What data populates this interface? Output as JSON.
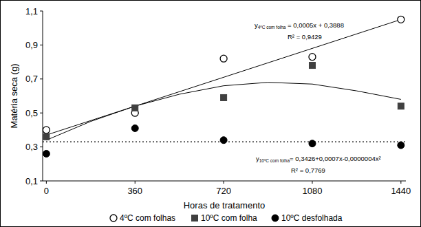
{
  "chart_data": {
    "type": "scatter",
    "x_label": "Horas de tratamento",
    "y_label": "Matéria seca (g)",
    "xlim": [
      -15,
      1460
    ],
    "ylim": [
      0.1,
      1.1
    ],
    "xticks": [
      0,
      360,
      720,
      1080,
      1440
    ],
    "yticks": [
      {
        "value": 0.1,
        "label": "0,1"
      },
      {
        "value": 0.3,
        "label": "0,3"
      },
      {
        "value": 0.5,
        "label": "0,5"
      },
      {
        "value": 0.7,
        "label": "0,7"
      },
      {
        "value": 0.9,
        "label": "0,9"
      },
      {
        "value": 1.1,
        "label": "1,1"
      }
    ],
    "grid": false,
    "legend": "bottom",
    "series": [
      {
        "name": "4ºC com folhas",
        "type": "scatter",
        "marker": "circle_open",
        "color": "#000000",
        "x": [
          0,
          360,
          720,
          1080,
          1440
        ],
        "values": [
          0.4,
          0.5,
          0.82,
          0.83,
          1.05
        ]
      },
      {
        "name": "10ºC com folha",
        "type": "scatter",
        "marker": "square",
        "color": "#404040",
        "x": [
          0,
          360,
          720,
          1080,
          1440
        ],
        "values": [
          0.36,
          0.53,
          0.59,
          0.78,
          0.54
        ]
      },
      {
        "name": "10ºC desfolhada",
        "type": "scatter",
        "marker": "circle",
        "color": "#000000",
        "x": [
          0,
          360,
          720,
          1080,
          1440
        ],
        "values": [
          0.26,
          0.41,
          0.34,
          0.32,
          0.31
        ]
      },
      {
        "type": "line",
        "line_style": "solid",
        "color": "#000000",
        "x": [
          0,
          1440
        ],
        "values": [
          0.37,
          1.05
        ]
      },
      {
        "type": "line",
        "line_style": "solid",
        "color": "#000000",
        "x": [
          0,
          180,
          360,
          540,
          720,
          900,
          1080,
          1260,
          1440
        ],
        "values": [
          0.34,
          0.45,
          0.54,
          0.61,
          0.66,
          0.68,
          0.67,
          0.63,
          0.58
        ]
      },
      {
        "type": "line",
        "line_style": "dotted",
        "color": "#000000",
        "x": [
          -15,
          1460
        ],
        "values": [
          0.33,
          0.33
        ]
      }
    ],
    "annotations": [
      {
        "text": "y",
        "sub": "4ºC com folha",
        "equation": " = 0,0005x + 0,3888",
        "r2": "R² = 0,9429"
      },
      {
        "text": "y",
        "sub": "10ºC com folha",
        "equation": "= 0,3426+0,0007x-0,0000004x²",
        "r2": "R² = 0,7769"
      }
    ]
  }
}
